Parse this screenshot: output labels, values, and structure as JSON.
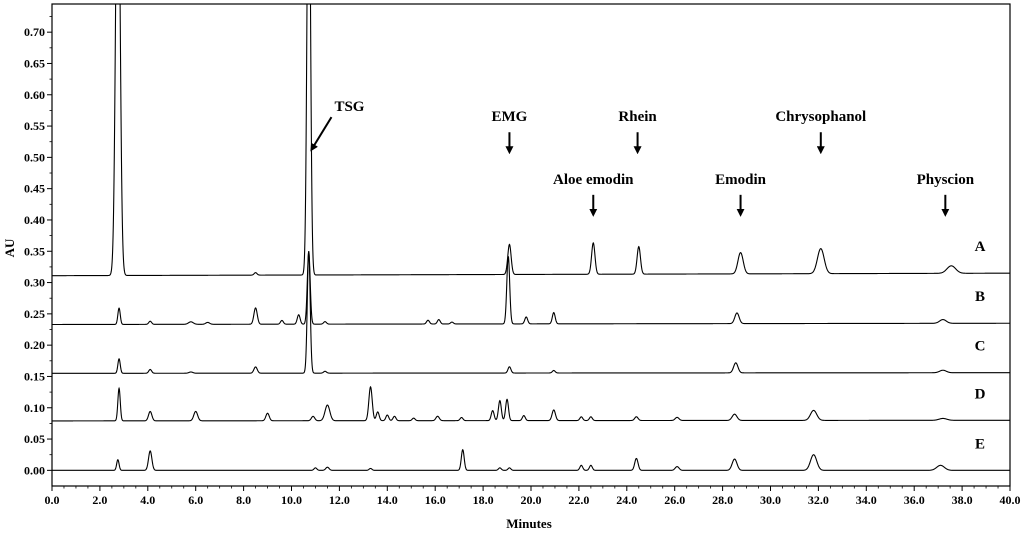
{
  "chart_data": {
    "type": "line",
    "title": "",
    "xlabel": "Minutes",
    "ylabel": "AU",
    "xlim": [
      0,
      40
    ],
    "ylim": [
      -0.025,
      0.745
    ],
    "grid": false,
    "x_ticks": [
      "0.0",
      "2.0",
      "4.0",
      "6.0",
      "8.0",
      "10.0",
      "12.0",
      "14.0",
      "16.0",
      "18.0",
      "20.0",
      "22.0",
      "24.0",
      "26.0",
      "28.0",
      "30.0",
      "32.0",
      "34.0",
      "36.0",
      "38.0",
      "40.0"
    ],
    "y_ticks": [
      "0.00",
      "0.05",
      "0.10",
      "0.15",
      "0.20",
      "0.25",
      "0.30",
      "0.35",
      "0.40",
      "0.45",
      "0.50",
      "0.55",
      "0.60",
      "0.65",
      "0.70"
    ],
    "series": [
      {
        "name": "A",
        "baseline": 0.311,
        "drift": 0.004,
        "color": "#000000",
        "peaks": [
          [
            2.75,
            0.75,
            0.09
          ],
          [
            10.72,
            0.75,
            0.07
          ],
          [
            8.5,
            0.004,
            0.06
          ],
          [
            19.1,
            0.048,
            0.07
          ],
          [
            22.6,
            0.05,
            0.07
          ],
          [
            24.5,
            0.044,
            0.07
          ],
          [
            28.75,
            0.034,
            0.11
          ],
          [
            32.1,
            0.04,
            0.14
          ],
          [
            37.55,
            0.012,
            0.18
          ]
        ]
      },
      {
        "name": "B",
        "baseline": 0.233,
        "drift": 0.002,
        "color": "#000000",
        "peaks": [
          [
            2.8,
            0.026,
            0.05
          ],
          [
            4.1,
            0.005,
            0.06
          ],
          [
            5.8,
            0.004,
            0.1
          ],
          [
            6.5,
            0.003,
            0.08
          ],
          [
            8.5,
            0.026,
            0.07
          ],
          [
            9.6,
            0.006,
            0.06
          ],
          [
            10.3,
            0.015,
            0.06
          ],
          [
            10.72,
            0.115,
            0.06
          ],
          [
            11.4,
            0.004,
            0.06
          ],
          [
            15.7,
            0.006,
            0.06
          ],
          [
            16.15,
            0.007,
            0.06
          ],
          [
            16.7,
            0.003,
            0.06
          ],
          [
            19.05,
            0.108,
            0.06
          ],
          [
            19.8,
            0.011,
            0.06
          ],
          [
            20.95,
            0.018,
            0.06
          ],
          [
            28.6,
            0.017,
            0.09
          ],
          [
            37.2,
            0.006,
            0.14
          ]
        ]
      },
      {
        "name": "C",
        "baseline": 0.155,
        "drift": 0.001,
        "color": "#000000",
        "peaks": [
          [
            2.8,
            0.023,
            0.05
          ],
          [
            4.1,
            0.006,
            0.06
          ],
          [
            5.8,
            0.002,
            0.08
          ],
          [
            8.5,
            0.01,
            0.07
          ],
          [
            10.72,
            0.195,
            0.06
          ],
          [
            11.4,
            0.003,
            0.06
          ],
          [
            19.1,
            0.01,
            0.06
          ],
          [
            20.95,
            0.004,
            0.06
          ],
          [
            28.55,
            0.016,
            0.09
          ],
          [
            37.2,
            0.004,
            0.14
          ]
        ]
      },
      {
        "name": "D",
        "baseline": 0.079,
        "drift": 0.001,
        "color": "#000000",
        "peaks": [
          [
            2.8,
            0.052,
            0.05
          ],
          [
            4.1,
            0.015,
            0.07
          ],
          [
            6.0,
            0.015,
            0.08
          ],
          [
            9.0,
            0.012,
            0.07
          ],
          [
            10.9,
            0.007,
            0.07
          ],
          [
            11.5,
            0.025,
            0.1
          ],
          [
            13.3,
            0.054,
            0.07
          ],
          [
            13.6,
            0.014,
            0.06
          ],
          [
            14.0,
            0.009,
            0.06
          ],
          [
            14.3,
            0.007,
            0.06
          ],
          [
            15.1,
            0.004,
            0.06
          ],
          [
            16.1,
            0.007,
            0.07
          ],
          [
            17.1,
            0.005,
            0.06
          ],
          [
            18.4,
            0.016,
            0.06
          ],
          [
            18.7,
            0.032,
            0.06
          ],
          [
            19.0,
            0.034,
            0.06
          ],
          [
            19.7,
            0.008,
            0.06
          ],
          [
            20.95,
            0.017,
            0.07
          ],
          [
            22.1,
            0.006,
            0.06
          ],
          [
            22.5,
            0.006,
            0.06
          ],
          [
            24.4,
            0.006,
            0.07
          ],
          [
            26.1,
            0.005,
            0.08
          ],
          [
            28.5,
            0.01,
            0.1
          ],
          [
            31.8,
            0.016,
            0.13
          ],
          [
            37.2,
            0.003,
            0.16
          ]
        ]
      },
      {
        "name": "E",
        "baseline": 0.0,
        "drift": 0.0,
        "color": "#000000",
        "peaks": [
          [
            2.75,
            0.017,
            0.05
          ],
          [
            4.1,
            0.031,
            0.07
          ],
          [
            11.0,
            0.004,
            0.06
          ],
          [
            11.5,
            0.005,
            0.07
          ],
          [
            13.3,
            0.003,
            0.06
          ],
          [
            17.15,
            0.033,
            0.06
          ],
          [
            18.7,
            0.004,
            0.06
          ],
          [
            19.1,
            0.004,
            0.06
          ],
          [
            22.1,
            0.008,
            0.06
          ],
          [
            22.5,
            0.008,
            0.06
          ],
          [
            24.4,
            0.019,
            0.07
          ],
          [
            26.1,
            0.006,
            0.08
          ],
          [
            28.5,
            0.018,
            0.1
          ],
          [
            31.8,
            0.025,
            0.13
          ],
          [
            37.1,
            0.008,
            0.16
          ]
        ]
      }
    ],
    "annotations": [
      {
        "text": "TSG",
        "arrow": "diagonal",
        "x": 10.75,
        "y": 0.51
      },
      {
        "text": "EMG",
        "arrow": "down",
        "x": 19.1,
        "y": 0.505
      },
      {
        "text": "Rhein",
        "arrow": "down",
        "x": 24.45,
        "y": 0.505
      },
      {
        "text": "Aloe emodin",
        "arrow": "down",
        "x": 22.6,
        "y": 0.405
      },
      {
        "text": "Emodin",
        "arrow": "down",
        "x": 28.75,
        "y": 0.405
      },
      {
        "text": "Chrysophanol",
        "arrow": "down",
        "x": 32.1,
        "y": 0.505
      },
      {
        "text": "Physcion",
        "arrow": "down",
        "x": 37.3,
        "y": 0.405
      }
    ]
  }
}
